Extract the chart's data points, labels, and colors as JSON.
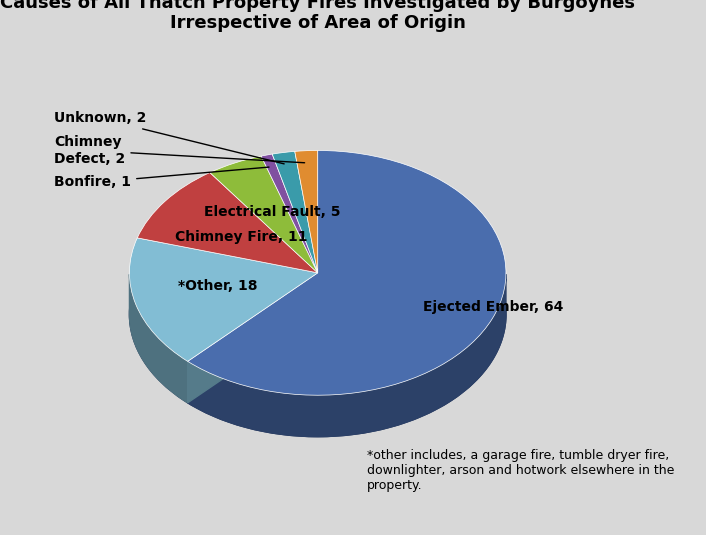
{
  "title": "Causes of All Thatch Property Fires Investigated by Burgoynes\nIrrespective of Area of Origin",
  "labels": [
    "Ejected Ember, 64",
    "*Other, 18",
    "Chimney Fire, 11",
    "Electrical Fault, 5",
    "Bonfire, 1",
    "Unknown, 2",
    "Chimney\nDefect, 2"
  ],
  "values": [
    64,
    18,
    11,
    5,
    1,
    2,
    2
  ],
  "colors": [
    "#4A6DAD",
    "#82BDD4",
    "#C04040",
    "#8EBC3A",
    "#8050A0",
    "#3A9BAA",
    "#E08C30"
  ],
  "background_color": "#D8D8D8",
  "title_fontsize": 13,
  "label_fontsize": 10,
  "startangle": 90,
  "footnote": "*other includes, a garage fire, tumble dryer fire,\ndownlighter, arson and hotwork elsewhere in the\nproperty."
}
